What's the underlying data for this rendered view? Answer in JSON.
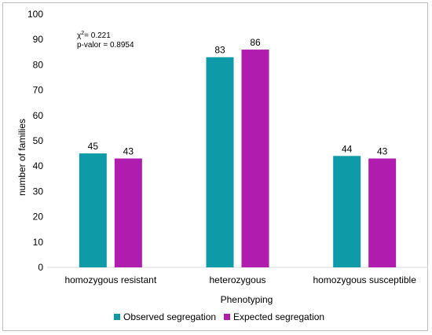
{
  "chart_data": {
    "type": "bar",
    "categories": [
      "homozygous resistant",
      "heterozygous",
      "homozygous susceptible"
    ],
    "series": [
      {
        "name": "Observed segregation",
        "values": [
          45,
          83,
          44
        ],
        "color": "#0f9aa8"
      },
      {
        "name": "Expected segregation",
        "values": [
          43,
          86,
          43
        ],
        "color": "#b01cad"
      }
    ],
    "title": "",
    "xlabel": "Phenotyping",
    "ylabel": "number of families",
    "ylim": [
      0,
      100
    ],
    "yticks": [
      0,
      10,
      20,
      30,
      40,
      50,
      60,
      70,
      80,
      90,
      100
    ],
    "grid": false,
    "legend_position": "bottom",
    "annotations": {
      "chi_prefix": "χ",
      "chi_sup": "2",
      "chi_value": "= 0.221",
      "pvalue": "p-valor = 0.8954"
    }
  }
}
